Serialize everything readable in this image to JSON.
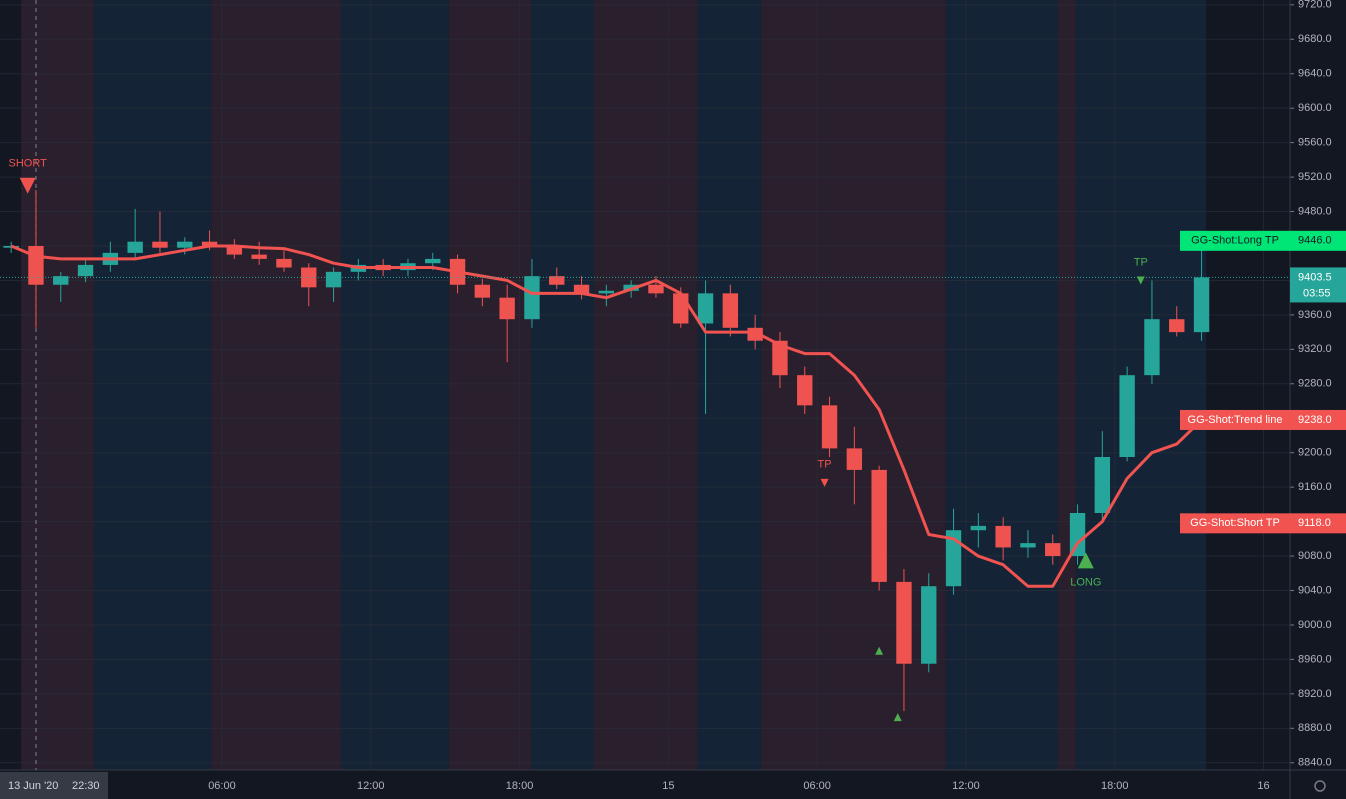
{
  "chart_data": {
    "type": "candlestick",
    "x": [
      "2020-06-13 21:00",
      "2020-06-13 22:00",
      "2020-06-13 23:00",
      "2020-06-14 00:00",
      "2020-06-14 01:00",
      "2020-06-14 02:00",
      "2020-06-14 03:00",
      "2020-06-14 04:00",
      "2020-06-14 05:00",
      "2020-06-14 06:00",
      "2020-06-14 07:00",
      "2020-06-14 08:00",
      "2020-06-14 09:00",
      "2020-06-14 10:00",
      "2020-06-14 11:00",
      "2020-06-14 12:00",
      "2020-06-14 13:00",
      "2020-06-14 14:00",
      "2020-06-14 15:00",
      "2020-06-14 16:00",
      "2020-06-14 17:00",
      "2020-06-14 18:00",
      "2020-06-14 19:00",
      "2020-06-14 20:00",
      "2020-06-14 21:00",
      "2020-06-14 22:00",
      "2020-06-14 23:00",
      "2020-06-15 00:00",
      "2020-06-15 01:00",
      "2020-06-15 02:00",
      "2020-06-15 03:00",
      "2020-06-15 04:00",
      "2020-06-15 05:00",
      "2020-06-15 06:00",
      "2020-06-15 07:00",
      "2020-06-15 08:00",
      "2020-06-15 09:00",
      "2020-06-15 10:00",
      "2020-06-15 11:00",
      "2020-06-15 12:00",
      "2020-06-15 13:00",
      "2020-06-15 14:00",
      "2020-06-15 15:00",
      "2020-06-15 16:00",
      "2020-06-15 17:00",
      "2020-06-15 18:00",
      "2020-06-15 19:00",
      "2020-06-15 20:00",
      "2020-06-15 21:00"
    ],
    "open": [
      9438,
      9440,
      9395,
      9405,
      9418,
      9432,
      9445,
      9438,
      9445,
      9440,
      9430,
      9425,
      9415,
      9392,
      9410,
      9418,
      9412,
      9420,
      9425,
      9395,
      9380,
      9355,
      9405,
      9395,
      9385,
      9388,
      9395,
      9385,
      9350,
      9385,
      9345,
      9330,
      9290,
      9255,
      9205,
      9180,
      9050,
      8955,
      9045,
      9110,
      9115,
      9090,
      9095,
      9080,
      9130,
      9195,
      9290,
      9355,
      9340
    ],
    "high": [
      9445,
      9505,
      9410,
      9425,
      9445,
      9483,
      9480,
      9450,
      9458,
      9448,
      9445,
      9435,
      9420,
      9415,
      9425,
      9425,
      9425,
      9432,
      9430,
      9402,
      9395,
      9425,
      9415,
      9405,
      9395,
      9400,
      9405,
      9392,
      9400,
      9395,
      9360,
      9340,
      9300,
      9265,
      9230,
      9185,
      9065,
      9060,
      9135,
      9130,
      9125,
      9110,
      9105,
      9140,
      9225,
      9300,
      9400,
      9370,
      9445
    ],
    "low": [
      9432,
      9345,
      9375,
      9398,
      9410,
      9425,
      9432,
      9430,
      9435,
      9425,
      9418,
      9410,
      9370,
      9375,
      9400,
      9405,
      9405,
      9412,
      9385,
      9370,
      9305,
      9345,
      9390,
      9378,
      9370,
      9380,
      9380,
      9345,
      9245,
      9335,
      9320,
      9275,
      9245,
      9195,
      9140,
      9040,
      8900,
      8945,
      9035,
      9090,
      9075,
      9078,
      9070,
      9070,
      9120,
      9190,
      9280,
      9335,
      9330
    ],
    "close": [
      9440,
      9395,
      9405,
      9418,
      9432,
      9445,
      9438,
      9445,
      9440,
      9430,
      9425,
      9415,
      9392,
      9410,
      9418,
      9412,
      9420,
      9425,
      9395,
      9380,
      9355,
      9405,
      9395,
      9385,
      9388,
      9395,
      9385,
      9350,
      9385,
      9345,
      9330,
      9290,
      9255,
      9205,
      9180,
      9050,
      8955,
      9045,
      9110,
      9115,
      9090,
      9095,
      9080,
      9130,
      9195,
      9290,
      9355,
      9340,
      9403.5
    ],
    "up_color": "#26a69a",
    "down_color": "#ef5350",
    "trend_line": {
      "color": "#f05350",
      "values": [
        9440,
        9428,
        9425,
        9425,
        9425,
        9425,
        9430,
        9435,
        9440,
        9440,
        9438,
        9437,
        9430,
        9420,
        9415,
        9415,
        9415,
        9415,
        9410,
        9405,
        9400,
        9385,
        9385,
        9385,
        9380,
        9390,
        9400,
        9385,
        9340,
        9340,
        9340,
        9325,
        9315,
        9315,
        9290,
        9250,
        9180,
        9105,
        9100,
        9080,
        9070,
        9045,
        9045,
        9095,
        9120,
        9170,
        9200,
        9210,
        9238
      ]
    },
    "background_bands": [
      {
        "from": "2020-06-13 21:54",
        "to": "2020-06-14 00:50",
        "color": "#2a1f2c"
      },
      {
        "from": "2020-06-14 00:50",
        "to": "2020-06-14 05:34",
        "color": "#142436"
      },
      {
        "from": "2020-06-14 05:34",
        "to": "2020-06-14 10:48",
        "color": "#2a1f2c"
      },
      {
        "from": "2020-06-14 10:48",
        "to": "2020-06-14 15:09",
        "color": "#142436"
      },
      {
        "from": "2020-06-14 15:09",
        "to": "2020-06-14 18:28",
        "color": "#2a1f2c"
      },
      {
        "from": "2020-06-14 18:28",
        "to": "2020-06-14 21:00",
        "color": "#142436"
      },
      {
        "from": "2020-06-14 21:00",
        "to": "2020-06-15 01:11",
        "color": "#2a1f2c"
      },
      {
        "from": "2020-06-15 01:11",
        "to": "2020-06-15 03:44",
        "color": "#142436"
      },
      {
        "from": "2020-06-15 03:44",
        "to": "2020-06-15 11:11",
        "color": "#2a1f2c"
      },
      {
        "from": "2020-06-15 11:11",
        "to": "2020-06-15 15:43",
        "color": "#142436"
      },
      {
        "from": "2020-06-15 15:43",
        "to": "2020-06-15 16:26",
        "color": "#2a1f2c"
      },
      {
        "from": "2020-06-15 16:26",
        "to": "2020-06-15 21:41",
        "color": "#142436"
      }
    ],
    "signals": [
      {
        "x": "2020-06-13 22:10",
        "price": 9510,
        "label": "SHORT",
        "direction": "down",
        "size": "large",
        "color": "#ef5350"
      },
      {
        "x": "2020-06-15 06:18",
        "price": 9165,
        "label": "TP",
        "direction": "down",
        "size": "small",
        "color": "#ef5350"
      },
      {
        "x": "2020-06-15 08:30",
        "price": 8970,
        "direction": "up",
        "size": "small",
        "color": "#4caf50"
      },
      {
        "x": "2020-06-15 09:15",
        "price": 8893,
        "direction": "up",
        "size": "small",
        "color": "#4caf50"
      },
      {
        "x": "2020-06-15 16:50",
        "price": 9075,
        "label": "LONG",
        "direction": "up",
        "size": "large",
        "color": "#4caf50"
      },
      {
        "x": "2020-06-15 19:03",
        "price": 9400,
        "label": "TP",
        "direction": "down",
        "size": "small",
        "color": "#4caf50"
      }
    ],
    "price_labels": [
      {
        "name": "GG-Shot:Long TP",
        "value": 9446.0,
        "label": "9446.0",
        "color": "#00e676",
        "text_color": "#131722"
      },
      {
        "name": "GG-Shot:Trend line",
        "value": 9238.0,
        "label": "9238.0",
        "color": "#f05350",
        "text_color": "#ffffff"
      },
      {
        "name": "GG-Shot:Short TP",
        "value": 9118.0,
        "label": "9118.0",
        "color": "#f05350",
        "text_color": "#ffffff"
      }
    ],
    "last_price": {
      "value": 9403.5,
      "countdown": "03:55",
      "color": "#26a69a"
    },
    "crosshair": {
      "x": "2020-06-13 22:30",
      "date_label": "13 Jun '20",
      "time_label": "22:30"
    },
    "xlim": [
      "2020-06-13 21:03",
      "2020-06-16 01:04"
    ],
    "xticks": [
      {
        "value": "2020-06-14 06:00",
        "label": "06:00"
      },
      {
        "value": "2020-06-14 12:00",
        "label": "12:00"
      },
      {
        "value": "2020-06-14 18:00",
        "label": "18:00"
      },
      {
        "value": "2020-06-15 00:00",
        "label": "15"
      },
      {
        "value": "2020-06-15 06:00",
        "label": "06:00"
      },
      {
        "value": "2020-06-15 12:00",
        "label": "12:00"
      },
      {
        "value": "2020-06-15 18:00",
        "label": "18:00"
      },
      {
        "value": "2020-06-16 00:00",
        "label": "16"
      }
    ],
    "ylim": [
      8831.6,
      9725.6
    ],
    "yticks": [
      {
        "value": 9720,
        "label": "9720.0"
      },
      {
        "value": 9680,
        "label": "9680.0"
      },
      {
        "value": 9640,
        "label": "9640.0"
      },
      {
        "value": 9600,
        "label": "9600.0"
      },
      {
        "value": 9560,
        "label": "9560.0"
      },
      {
        "value": 9520,
        "label": "9520.0"
      },
      {
        "value": 9480,
        "label": "9480.0"
      },
      {
        "value": 9440,
        "label": "9440.0"
      },
      {
        "value": 9400,
        "label": "9400.0"
      },
      {
        "value": 9360,
        "label": "9360.0"
      },
      {
        "value": 9320,
        "label": "9320.0"
      },
      {
        "value": 9280,
        "label": "9280.0"
      },
      {
        "value": 9240,
        "label": "9240.0"
      },
      {
        "value": 9200,
        "label": "9200.0"
      },
      {
        "value": 9160,
        "label": "9160.0"
      },
      {
        "value": 9120,
        "label": "9120.0"
      },
      {
        "value": 9080,
        "label": "9080.0"
      },
      {
        "value": 9040,
        "label": "9040.0"
      },
      {
        "value": 9000,
        "label": "9000.0"
      },
      {
        "value": 8960,
        "label": "8960.0"
      },
      {
        "value": 8920,
        "label": "8920.0"
      },
      {
        "value": 8880,
        "label": "8880.0"
      },
      {
        "value": 8840,
        "label": "8840.0"
      }
    ],
    "grid": true
  }
}
